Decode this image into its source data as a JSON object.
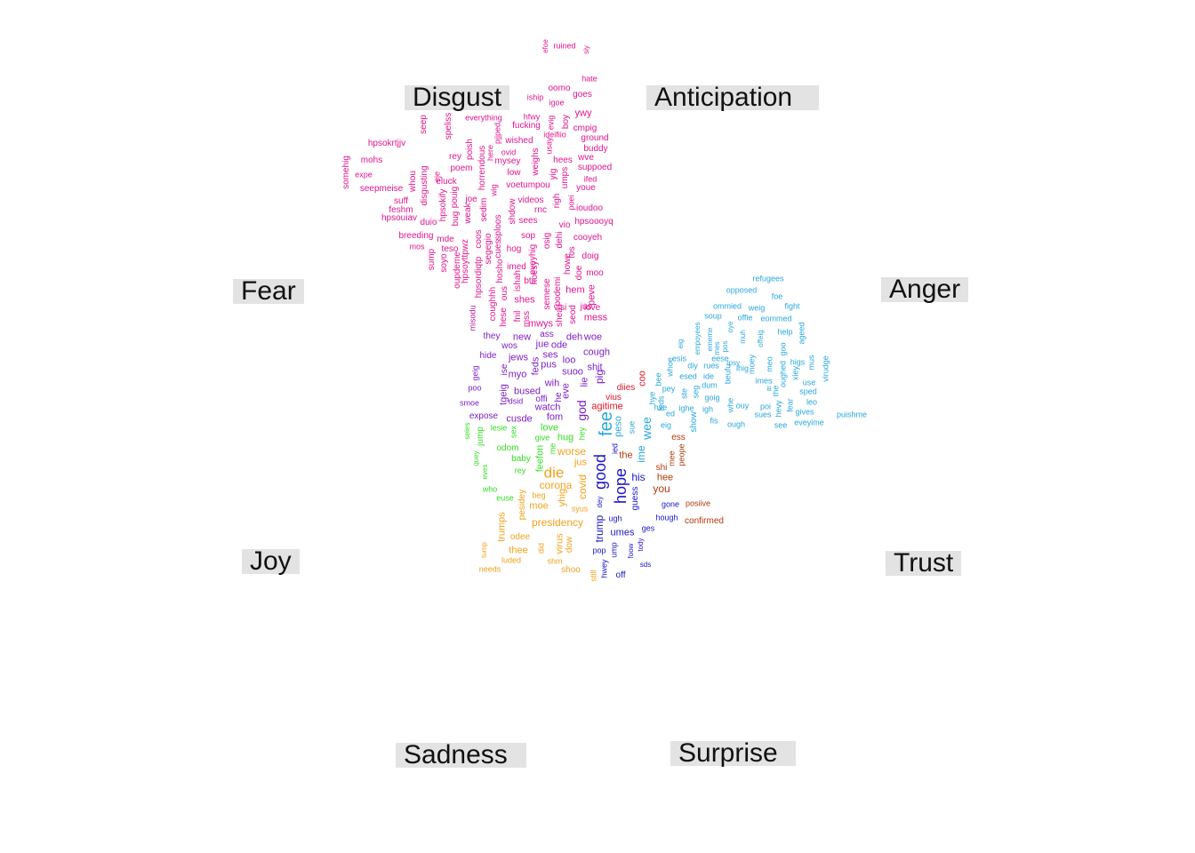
{
  "categories": {
    "disgust": "Disgust",
    "anticipation": "Anticipation",
    "fear": "Fear",
    "anger": "Anger",
    "joy": "Joy",
    "trust": "Trust",
    "sadness": "Sadness",
    "surprise": "Surprise"
  },
  "colors": {
    "disgust": "#e0158f",
    "fear": "#b5179e",
    "anger": "#2aa7dc",
    "trust": "#1a14c8",
    "joy": "#33dd22",
    "sadness": "#f0a21c",
    "surprise": "#b03a0e",
    "anticipation": "#7b1fc4",
    "mixed": "#d71828",
    "label_bg": "#e3e3e3"
  },
  "words": [
    [
      "ruined",
      "disgust"
    ],
    [
      "efoe",
      "disgust"
    ],
    [
      "siy",
      "disgust"
    ],
    [
      "hate",
      "disgust"
    ],
    [
      "oomo",
      "disgust"
    ],
    [
      "goes",
      "disgust"
    ],
    [
      "iship",
      "disgust"
    ],
    [
      "igoe",
      "disgust"
    ],
    [
      "ywy",
      "disgust"
    ],
    [
      "boy",
      "disgust"
    ],
    [
      "everything",
      "disgust"
    ],
    [
      "hfwy",
      "disgust"
    ],
    [
      "fucking",
      "disgust"
    ],
    [
      "evig",
      "disgust"
    ],
    [
      "cmpig",
      "disgust"
    ],
    [
      "seep",
      "disgust"
    ],
    [
      "speliss",
      "disgust"
    ],
    [
      "pjjped",
      "disgust"
    ],
    [
      "ideifiio",
      "disgust"
    ],
    [
      "ground",
      "disgust"
    ],
    [
      "hpsokrtjjv",
      "disgust"
    ],
    [
      "wished",
      "disgust"
    ],
    [
      "usay",
      "disgust"
    ],
    [
      "buddy",
      "disgust"
    ],
    [
      "mohs",
      "disgust"
    ],
    [
      "rey",
      "disgust"
    ],
    [
      "poish",
      "disgust"
    ],
    [
      "ovid",
      "disgust"
    ],
    [
      "hees",
      "disgust"
    ],
    [
      "wve",
      "disgust"
    ],
    [
      "somehig",
      "disgust"
    ],
    [
      "expe",
      "disgust"
    ],
    [
      "whou",
      "disgust"
    ],
    [
      "poem",
      "disgust"
    ],
    [
      "here",
      "disgust"
    ],
    [
      "mysey",
      "disgust"
    ],
    [
      "weighs",
      "disgust"
    ],
    [
      "suppoed",
      "disgust"
    ],
    [
      "disgusting",
      "disgust"
    ],
    [
      "eje",
      "disgust"
    ],
    [
      "horrendous",
      "disgust"
    ],
    [
      "low",
      "disgust"
    ],
    [
      "yig",
      "disgust"
    ],
    [
      "umps",
      "disgust"
    ],
    [
      "ifed",
      "disgust"
    ],
    [
      "seepmeise",
      "disgust"
    ],
    [
      "eluck",
      "disgust"
    ],
    [
      "voetumpou",
      "disgust"
    ],
    [
      "youe",
      "disgust"
    ],
    [
      "suff",
      "disgust"
    ],
    [
      "hpsokify",
      "disgust"
    ],
    [
      "joe",
      "disgust"
    ],
    [
      "wig",
      "disgust"
    ],
    [
      "videos",
      "disgust"
    ],
    [
      "righ",
      "disgust"
    ],
    [
      "feshm",
      "disgust"
    ],
    [
      "bug",
      "disgust"
    ],
    [
      "pouig",
      "disgust"
    ],
    [
      "weak",
      "disgust"
    ],
    [
      "sedim",
      "disgust"
    ],
    [
      "shdow",
      "disgust"
    ],
    [
      "rnc",
      "disgust"
    ],
    [
      "poei",
      "disgust"
    ],
    [
      "ioudoo",
      "disgust"
    ],
    [
      "hpsouiav",
      "disgust"
    ],
    [
      "duio",
      "disgust"
    ],
    [
      "sploos",
      "disgust"
    ],
    [
      "sees",
      "disgust"
    ],
    [
      "vio",
      "disgust"
    ],
    [
      "hpsoooyq",
      "disgust"
    ],
    [
      "breeding",
      "disgust"
    ],
    [
      "mde",
      "disgust"
    ],
    [
      "sop",
      "disgust"
    ],
    [
      "dehi",
      "disgust"
    ],
    [
      "cooyeh",
      "disgust"
    ],
    [
      "mos",
      "disgust"
    ],
    [
      "teso",
      "disgust"
    ],
    [
      "coos",
      "disgust"
    ],
    [
      "segegio",
      "disgust"
    ],
    [
      "osig",
      "disgust"
    ],
    [
      "hog",
      "disgust"
    ],
    [
      "fos",
      "disgust"
    ],
    [
      "doig",
      "disgust"
    ],
    [
      "sump",
      "disgust"
    ],
    [
      "soyo",
      "disgust"
    ],
    [
      "hpsoyttpwz",
      "disgust"
    ],
    [
      "cues",
      "disgust"
    ],
    [
      "eveyhig",
      "disgust"
    ],
    [
      "howe",
      "disgust"
    ],
    [
      "imed",
      "disgust"
    ],
    [
      "hoesy",
      "disgust"
    ],
    [
      "oupdeme",
      "disgust"
    ],
    [
      "hpsordiqtp",
      "disgust"
    ],
    [
      "hosho",
      "disgust"
    ],
    [
      "ishah",
      "disgust"
    ],
    [
      "bts",
      "disgust"
    ],
    [
      "doe",
      "disgust"
    ],
    [
      "moo",
      "disgust"
    ],
    [
      "semese",
      "disgust"
    ],
    [
      "podemi",
      "disgust"
    ],
    [
      "hem",
      "disgust"
    ],
    [
      "peve",
      "disgust"
    ],
    [
      "coughhh",
      "disgust"
    ],
    [
      "ous",
      "disgust"
    ],
    [
      "shes",
      "disgust"
    ],
    [
      "visi",
      "disgust"
    ],
    [
      "seod",
      "disgust"
    ],
    [
      "jus",
      "disgust"
    ],
    [
      "love",
      "disgust"
    ],
    [
      "misodu",
      "fear"
    ],
    [
      "hese",
      "disgust"
    ],
    [
      "fnil",
      "disgust"
    ],
    [
      "mss",
      "disgust"
    ],
    [
      "mwys",
      "disgust"
    ],
    [
      "shea",
      "disgust"
    ],
    [
      "mess",
      "disgust"
    ],
    [
      "they",
      "anticipation"
    ],
    [
      "new",
      "anticipation"
    ],
    [
      "ass",
      "anticipation"
    ],
    [
      "deh",
      "anticipation"
    ],
    [
      "woe",
      "anticipation"
    ],
    [
      "wos",
      "anticipation"
    ],
    [
      "jue",
      "anticipation"
    ],
    [
      "ode",
      "anticipation"
    ],
    [
      "cough",
      "anticipation"
    ],
    [
      "hide",
      "anticipation"
    ],
    [
      "jews",
      "anticipation"
    ],
    [
      "ses",
      "anticipation"
    ],
    [
      "feds",
      "anticipation"
    ],
    [
      "loo",
      "anticipation"
    ],
    [
      "pus",
      "anticipation"
    ],
    [
      "shit",
      "anticipation"
    ],
    [
      "geig",
      "anticipation"
    ],
    [
      "ise",
      "anticipation"
    ],
    [
      "myo",
      "anticipation"
    ],
    [
      "suoo",
      "anticipation"
    ],
    [
      "pig",
      "anticipation"
    ],
    [
      "wih",
      "anticipation"
    ],
    [
      "lie",
      "anticipation"
    ],
    [
      "eve",
      "anticipation"
    ],
    [
      "poo",
      "anticipation"
    ],
    [
      "tgeig",
      "anticipation"
    ],
    [
      "bused",
      "anticipation"
    ],
    [
      "he",
      "anticipation"
    ],
    [
      "offi",
      "anticipation"
    ],
    [
      "dsid",
      "anticipation"
    ],
    [
      "smoe",
      "anticipation"
    ],
    [
      "watch",
      "anticipation"
    ],
    [
      "god",
      "anticipation"
    ],
    [
      "expose",
      "anticipation"
    ],
    [
      "cusde",
      "anticipation"
    ],
    [
      "fom",
      "anticipation"
    ],
    [
      "fee",
      "anger"
    ],
    [
      "coo",
      "mixed"
    ],
    [
      "diies",
      "mixed"
    ],
    [
      "vius",
      "mixed"
    ],
    [
      "agitime",
      "mixed"
    ],
    [
      "seies",
      "joy"
    ],
    [
      "jump",
      "joy"
    ],
    [
      "lesie",
      "joy"
    ],
    [
      "sex",
      "joy"
    ],
    [
      "love",
      "joy"
    ],
    [
      "give",
      "joy"
    ],
    [
      "hug",
      "joy"
    ],
    [
      "hey",
      "joy"
    ],
    [
      "odom",
      "joy"
    ],
    [
      "baby",
      "joy"
    ],
    [
      "feefon",
      "joy"
    ],
    [
      "me",
      "joy"
    ],
    [
      "quey",
      "joy"
    ],
    [
      "rey",
      "joy"
    ],
    [
      "who",
      "joy"
    ],
    [
      "euse",
      "joy"
    ],
    [
      "eves",
      "joy"
    ],
    [
      "worse",
      "sadness"
    ],
    [
      "die",
      "sadness"
    ],
    [
      "jus",
      "sadness"
    ],
    [
      "corona",
      "sadness"
    ],
    [
      "covid",
      "sadness"
    ],
    [
      "pesidey",
      "sadness"
    ],
    [
      "beg",
      "sadness"
    ],
    [
      "moe",
      "sadness"
    ],
    [
      "yhig",
      "sadness"
    ],
    [
      "syus",
      "sadness"
    ],
    [
      "presidency",
      "sadness"
    ],
    [
      "trumps",
      "sadness"
    ],
    [
      "odee",
      "sadness"
    ],
    [
      "tump",
      "sadness"
    ],
    [
      "thee",
      "sadness"
    ],
    [
      "did",
      "sadness"
    ],
    [
      "virus",
      "sadness"
    ],
    [
      "dow",
      "sadness"
    ],
    [
      "luded",
      "sadness"
    ],
    [
      "shm",
      "sadness"
    ],
    [
      "needs",
      "sadness"
    ],
    [
      "shoo",
      "sadness"
    ],
    [
      "still",
      "sadness"
    ],
    [
      "good",
      "trust"
    ],
    [
      "hope",
      "trust"
    ],
    [
      "his",
      "trust"
    ],
    [
      "guess",
      "trust"
    ],
    [
      "ied",
      "trust"
    ],
    [
      "dey",
      "trust"
    ],
    [
      "trump",
      "trust"
    ],
    [
      "ugh",
      "trust"
    ],
    [
      "umes",
      "trust"
    ],
    [
      "pop",
      "trust"
    ],
    [
      "ump",
      "trust"
    ],
    [
      "foow",
      "trust"
    ],
    [
      "tody",
      "trust"
    ],
    [
      "hwey",
      "trust"
    ],
    [
      "off",
      "trust"
    ],
    [
      "sds",
      "trust"
    ],
    [
      "ges",
      "trust"
    ],
    [
      "hough",
      "trust"
    ],
    [
      "gone",
      "trust"
    ],
    [
      "the",
      "surprise"
    ],
    [
      "ess",
      "surprise"
    ],
    [
      "mee",
      "surprise"
    ],
    [
      "peope",
      "surprise"
    ],
    [
      "shi",
      "surprise"
    ],
    [
      "hee",
      "surprise"
    ],
    [
      "you",
      "surprise"
    ],
    [
      "posiive",
      "surprise"
    ],
    [
      "confirmed",
      "surprise"
    ],
    [
      "refugees",
      "anger"
    ],
    [
      "opposed",
      "anger"
    ],
    [
      "foe",
      "anger"
    ],
    [
      "ommied",
      "anger"
    ],
    [
      "weig",
      "anger"
    ],
    [
      "fight",
      "anger"
    ],
    [
      "soup",
      "anger"
    ],
    [
      "offie",
      "anger"
    ],
    [
      "eommed",
      "anger"
    ],
    [
      "empoyees",
      "anger"
    ],
    [
      "ememe",
      "anger"
    ],
    [
      "pos",
      "anger"
    ],
    [
      "oye",
      "anger"
    ],
    [
      "muh",
      "anger"
    ],
    [
      "offeig",
      "anger"
    ],
    [
      "help",
      "anger"
    ],
    [
      "ageed",
      "anger"
    ],
    [
      "eig",
      "anger"
    ],
    [
      "esis",
      "anger"
    ],
    [
      "eese",
      "anger"
    ],
    [
      "mes",
      "anger"
    ],
    [
      "ihig",
      "anger"
    ],
    [
      "goo",
      "anger"
    ],
    [
      "diy",
      "anger"
    ],
    [
      "rues",
      "anger"
    ],
    [
      "whoe",
      "anger"
    ],
    [
      "beufu",
      "anger"
    ],
    [
      "moey",
      "anger"
    ],
    [
      "meo",
      "anger"
    ],
    [
      "higs",
      "anger"
    ],
    [
      "mus",
      "anger"
    ],
    [
      "esed",
      "anger"
    ],
    [
      "ide",
      "anger"
    ],
    [
      "ipsy",
      "anger"
    ],
    [
      "imes",
      "anger"
    ],
    [
      "iii",
      "anger"
    ],
    [
      "the",
      "anger"
    ],
    [
      "oughed",
      "anger"
    ],
    [
      "xiey",
      "anger"
    ],
    [
      "use",
      "anger"
    ],
    [
      "virudge",
      "anger"
    ],
    [
      "bee",
      "anger"
    ],
    [
      "pey",
      "anger"
    ],
    [
      "ste",
      "anger"
    ],
    [
      "seg",
      "anger"
    ],
    [
      "dum",
      "anger"
    ],
    [
      "goig",
      "anger"
    ],
    [
      "sped",
      "anger"
    ],
    [
      "hye",
      "anger"
    ],
    [
      "feds",
      "anger"
    ],
    [
      "hve",
      "anger"
    ],
    [
      "ed",
      "anger"
    ],
    [
      "ighe",
      "anger"
    ],
    [
      "igh",
      "anger"
    ],
    [
      "whe",
      "anger"
    ],
    [
      "ouy",
      "anger"
    ],
    [
      "poi",
      "anger"
    ],
    [
      "hevy",
      "anger"
    ],
    [
      "fear",
      "anger"
    ],
    [
      "leo",
      "anger"
    ],
    [
      "puishme",
      "anger"
    ],
    [
      "sues",
      "anger"
    ],
    [
      "gives",
      "anger"
    ],
    [
      "peso",
      "anger"
    ],
    [
      "wee",
      "anger"
    ],
    [
      "sue",
      "anger"
    ],
    [
      "ime",
      "anger"
    ],
    [
      "show",
      "anger"
    ],
    [
      "eig",
      "anger"
    ],
    [
      "fis",
      "anger"
    ],
    [
      "ough",
      "anger"
    ],
    [
      "see",
      "anger"
    ],
    [
      "eveyime",
      "anger"
    ],
    [
      "piess",
      "anger"
    ]
  ]
}
